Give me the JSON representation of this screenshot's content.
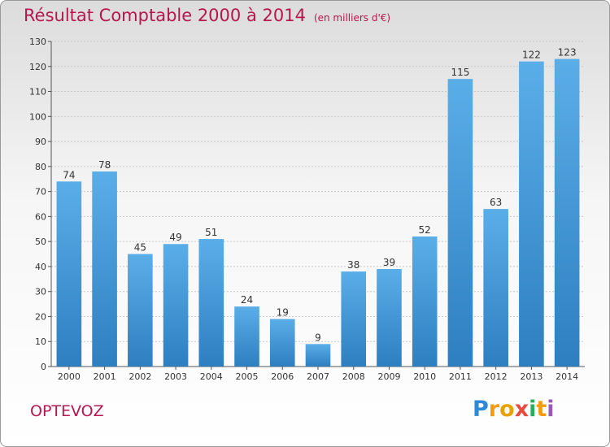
{
  "header": {
    "title": "Résultat Comptable 2000 à 2014",
    "unit_note": "(en milliers d'€)"
  },
  "footer": {
    "commune": "OPTEVOZ",
    "logo_letters": [
      "P",
      "r",
      "o",
      "x",
      "i",
      "t",
      "i"
    ],
    "logo_colors": [
      "#2e8ad6",
      "#f39c12",
      "#e8a200",
      "#e74c3c",
      "#27ae60",
      "#f39c12",
      "#9b59b6"
    ]
  },
  "chart_data": {
    "type": "bar",
    "categories": [
      "2000",
      "2001",
      "2002",
      "2003",
      "2004",
      "2005",
      "2006",
      "2007",
      "2008",
      "2009",
      "2010",
      "2011",
      "2012",
      "2013",
      "2014"
    ],
    "values": [
      74,
      78,
      45,
      49,
      51,
      24,
      19,
      9,
      38,
      39,
      52,
      115,
      63,
      122,
      123
    ],
    "ylim": [
      0,
      130
    ],
    "yticks": [
      0,
      10,
      20,
      30,
      40,
      50,
      60,
      70,
      80,
      90,
      100,
      110,
      120,
      130
    ],
    "grid": true,
    "bar_color_light": "#5aaee8",
    "bar_color_dark": "#2d7fc0"
  }
}
